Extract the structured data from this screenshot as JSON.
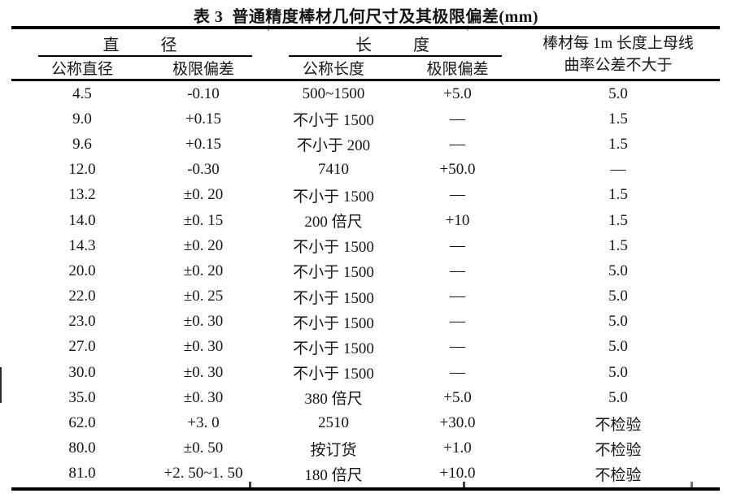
{
  "title": "表 3  普通精度棒材几何尺寸及其极限偏差(mm)",
  "header": {
    "diameter_group": "直 径",
    "length_group": "长 度",
    "curvature_line1": "棒材每 1m 长度上母线",
    "curvature_line2": "曲率公差不大于",
    "nominal_diameter": "公称直径",
    "diameter_deviation": "极限偏差",
    "nominal_length": "公称长度",
    "length_deviation": "极限偏差"
  },
  "columns": [
    "公称直径",
    "极限偏差",
    "公称长度",
    "极限偏差",
    "棒材每1m长度上母线曲率公差不大于"
  ],
  "rows": [
    [
      "4.5",
      "-0.10",
      "500~1500",
      "+5.0",
      "5.0"
    ],
    [
      "9.0",
      "+0.15",
      "不小于 1500",
      "—",
      "1.5"
    ],
    [
      "9.6",
      "+0.15",
      "不小于 200",
      "—",
      "1.5"
    ],
    [
      "12.0",
      "-0.30",
      "7410",
      "+50.0",
      "—"
    ],
    [
      "13.2",
      "±0. 20",
      "不小于 1500",
      "—",
      "1.5"
    ],
    [
      "14.0",
      "±0. 15",
      "200 倍尺",
      "+10",
      "1.5"
    ],
    [
      "14.3",
      "±0. 20",
      "不小于 1500",
      "—",
      "1.5"
    ],
    [
      "20.0",
      "±0. 20",
      "不小于 1500",
      "—",
      "5.0"
    ],
    [
      "22.0",
      "±0. 25",
      "不小于 1500",
      "—",
      "5.0"
    ],
    [
      "23.0",
      "±0. 30",
      "不小于 1500",
      "—",
      "5.0"
    ],
    [
      "27.0",
      "±0. 30",
      "不小于 1500",
      "—",
      "5.0"
    ],
    [
      "30.0",
      "±0. 30",
      "不小于 1500",
      "—",
      "5.0"
    ],
    [
      "35.0",
      "±0. 30",
      "380 倍尺",
      "+5.0",
      "5.0"
    ],
    [
      "62.0",
      "+3. 0",
      "2510",
      "+30.0",
      "不检验"
    ],
    [
      "80.0",
      "±0. 50",
      "按订货",
      "+1.0",
      "不检验"
    ],
    [
      "81.0",
      "+2. 50~1. 50",
      "180 倍尺",
      "+10.0",
      "不检验"
    ]
  ]
}
